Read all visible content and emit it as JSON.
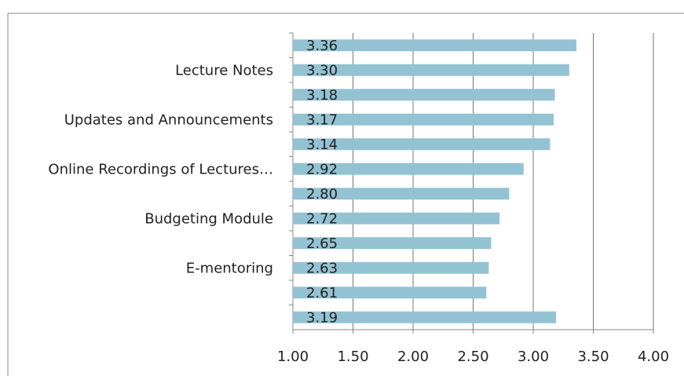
{
  "chart_data": {
    "type": "bar",
    "orientation": "horizontal",
    "categories": [
      null,
      "Lecture Notes",
      null,
      "Updates and Announcements",
      null,
      "Online Recordings of Lectures…",
      null,
      "Budgeting Module",
      null,
      "E-mentoring",
      null,
      null
    ],
    "values": [
      3.36,
      3.3,
      3.18,
      3.17,
      3.14,
      2.92,
      2.8,
      2.72,
      2.65,
      2.63,
      2.61,
      3.19
    ],
    "value_labels": [
      "3.36",
      "3.30",
      "3.18",
      "3.17",
      "3.14",
      "2.92",
      "2.80",
      "2.72",
      "2.65",
      "2.63",
      "2.61",
      "3.19"
    ],
    "color": "#93c3d3",
    "xlim": [
      1,
      4
    ],
    "xticks": [
      {
        "value": 1,
        "label": "1.00"
      },
      {
        "value": 1.5,
        "label": "1.50"
      },
      {
        "value": 2,
        "label": "2.00"
      },
      {
        "value": 2.5,
        "label": "2.50"
      },
      {
        "value": 3,
        "label": "3.00"
      },
      {
        "value": 3.5,
        "label": "3.50"
      },
      {
        "value": 4,
        "label": "4.00"
      }
    ],
    "grid": true
  }
}
